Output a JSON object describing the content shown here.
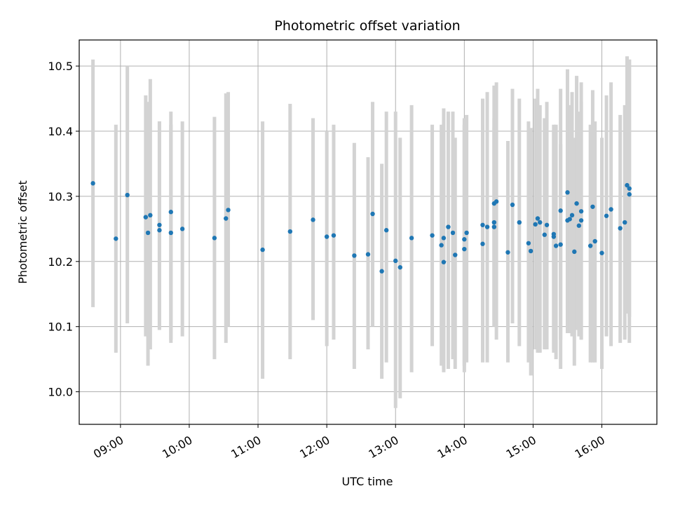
{
  "chart_data": {
    "type": "scatter",
    "title": "Photometric offset variation",
    "xlabel": "UTC time",
    "ylabel": "Photometric offset",
    "grid": true,
    "legend": "none",
    "xlim": [
      "08:24",
      "16:48"
    ],
    "ylim": [
      9.95,
      10.54
    ],
    "x_ticks": [
      "09:00",
      "10:00",
      "11:00",
      "12:00",
      "13:00",
      "14:00",
      "15:00",
      "16:00"
    ],
    "y_ticks": [
      "10.0",
      "10.1",
      "10.2",
      "10.3",
      "10.4",
      "10.5"
    ],
    "point_color": "#1f77b4",
    "errorbar_color": "#d3d3d3",
    "series": [
      {
        "x": [
          "08:36",
          "08:56",
          "09:06",
          "09:22",
          "09:24",
          "09:26",
          "09:34",
          "09:34",
          "09:44",
          "09:44",
          "09:54",
          "10:22",
          "10:32",
          "10:34",
          "11:04",
          "11:28",
          "11:48",
          "12:00",
          "12:06",
          "12:24",
          "12:36",
          "12:40",
          "12:48",
          "12:52",
          "13:00",
          "13:04",
          "13:14",
          "13:32",
          "13:40",
          "13:42",
          "13:42",
          "13:46",
          "13:50",
          "13:52",
          "14:00",
          "14:00",
          "14:02",
          "14:16",
          "14:16",
          "14:20",
          "14:26",
          "14:26",
          "14:26",
          "14:28",
          "14:38",
          "14:42",
          "14:48",
          "14:56",
          "14:58",
          "15:02",
          "15:04",
          "15:06",
          "15:10",
          "15:12",
          "15:18",
          "15:18",
          "15:20",
          "15:24",
          "15:24",
          "15:30",
          "15:30",
          "15:32",
          "15:34",
          "15:36",
          "15:38",
          "15:40",
          "15:42",
          "15:42",
          "15:50",
          "15:52",
          "15:54",
          "16:00",
          "16:04",
          "16:08",
          "16:16",
          "16:20",
          "16:22",
          "16:24",
          "16:24"
        ],
        "y": [
          10.32,
          10.235,
          10.302,
          10.268,
          10.244,
          10.271,
          10.256,
          10.248,
          10.276,
          10.244,
          10.25,
          10.236,
          10.266,
          10.279,
          10.218,
          10.246,
          10.264,
          10.238,
          10.24,
          10.209,
          10.211,
          10.273,
          10.185,
          10.248,
          10.201,
          10.191,
          10.236,
          10.24,
          10.225,
          10.199,
          10.236,
          10.253,
          10.244,
          10.21,
          10.234,
          10.219,
          10.244,
          10.227,
          10.256,
          10.253,
          10.289,
          10.253,
          10.26,
          10.292,
          10.214,
          10.287,
          10.26,
          10.228,
          10.216,
          10.257,
          10.266,
          10.26,
          10.241,
          10.256,
          10.238,
          10.242,
          10.224,
          10.278,
          10.226,
          10.306,
          10.263,
          10.265,
          10.271,
          10.215,
          10.289,
          10.255,
          10.277,
          10.263,
          10.224,
          10.284,
          10.231,
          10.213,
          10.27,
          10.28,
          10.251,
          10.26,
          10.317,
          10.312,
          10.303
        ],
        "y_low": [
          10.13,
          10.06,
          10.105,
          10.085,
          10.04,
          10.065,
          10.095,
          10.095,
          10.075,
          10.08,
          10.085,
          10.05,
          10.075,
          10.1,
          10.02,
          10.05,
          10.11,
          10.07,
          10.08,
          10.035,
          10.065,
          10.1,
          10.02,
          10.045,
          9.975,
          9.99,
          10.03,
          10.07,
          10.04,
          10.03,
          10.035,
          10.035,
          10.05,
          10.035,
          10.04,
          10.03,
          10.045,
          10.045,
          10.06,
          10.045,
          10.11,
          10.1,
          10.1,
          10.08,
          10.045,
          10.105,
          10.07,
          10.045,
          10.025,
          10.065,
          10.06,
          10.06,
          10.065,
          10.065,
          10.065,
          10.06,
          10.05,
          10.035,
          10.08,
          10.125,
          10.09,
          10.09,
          10.085,
          10.04,
          10.095,
          10.085,
          10.08,
          10.08,
          10.045,
          10.045,
          10.045,
          10.035,
          10.085,
          10.07,
          10.075,
          10.08,
          10.12,
          10.115,
          10.075
        ],
        "y_high": [
          10.51,
          10.41,
          10.5,
          10.455,
          10.445,
          10.48,
          10.415,
          10.415,
          10.43,
          10.41,
          10.415,
          10.422,
          10.458,
          10.46,
          10.415,
          10.442,
          10.42,
          10.4,
          10.41,
          10.382,
          10.36,
          10.445,
          10.35,
          10.43,
          10.43,
          10.39,
          10.44,
          10.41,
          10.41,
          10.37,
          10.435,
          10.43,
          10.43,
          10.39,
          10.42,
          10.41,
          10.425,
          10.41,
          10.45,
          10.46,
          10.47,
          10.405,
          10.42,
          10.475,
          10.385,
          10.465,
          10.45,
          10.415,
          10.405,
          10.45,
          10.465,
          10.44,
          10.42,
          10.445,
          10.41,
          10.4,
          10.41,
          10.465,
          10.38,
          10.495,
          10.45,
          10.44,
          10.46,
          10.39,
          10.485,
          10.43,
          10.475,
          10.445,
          10.41,
          10.463,
          10.415,
          10.39,
          10.455,
          10.475,
          10.425,
          10.44,
          10.515,
          10.51,
          10.51
        ]
      }
    ]
  }
}
